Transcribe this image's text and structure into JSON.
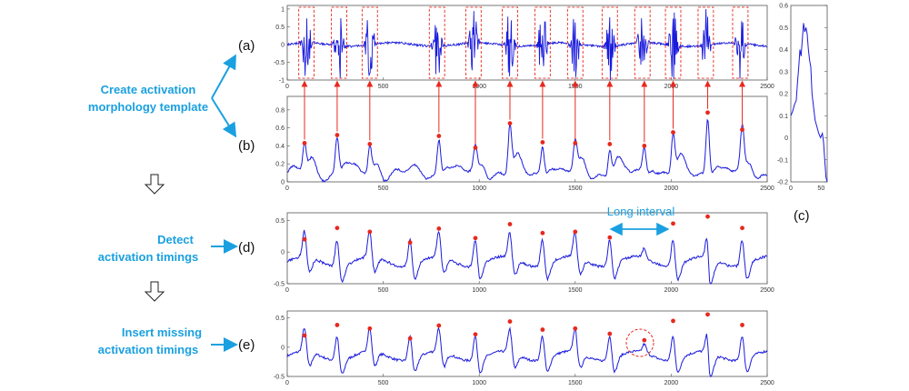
{
  "steps": {
    "template": [
      "Create activation",
      "morphology template"
    ],
    "detect": [
      "Detect",
      "activation timings"
    ],
    "insert": [
      "Insert missing",
      "activation timings"
    ]
  },
  "panel_labels": {
    "a": "(a)",
    "b": "(b)",
    "c": "(c)",
    "d": "(d)",
    "e": "(e)"
  },
  "annotation": "Long interval",
  "colors": {
    "signal": "#1a1adc",
    "marker": "#e8281e",
    "accent": "#1aa0e0",
    "box": "#e8281e"
  },
  "chart_data": [
    {
      "type": "line",
      "name": "panel-a",
      "x_ticks": [
        "0",
        "500",
        "1000",
        "1500",
        "2000",
        "2500"
      ],
      "y_ticks": [
        "1",
        "0.5",
        "0",
        "-0.5",
        "-1"
      ],
      "xlim": [
        0,
        2500
      ],
      "ylim": [
        -1,
        1.1
      ],
      "windows": [
        [
          60,
          140
        ],
        [
          230,
          310
        ],
        [
          390,
          470
        ],
        [
          740,
          820
        ],
        [
          930,
          1010
        ],
        [
          1120,
          1200
        ],
        [
          1290,
          1370
        ],
        [
          1460,
          1540
        ],
        [
          1640,
          1720
        ],
        [
          1810,
          1890
        ],
        [
          1970,
          2050
        ],
        [
          2140,
          2220
        ],
        [
          2320,
          2400
        ]
      ]
    },
    {
      "type": "line",
      "name": "panel-b",
      "x_ticks": [
        "0",
        "500",
        "1000",
        "1500",
        "2000",
        "2500"
      ],
      "y_ticks": [
        "0.8",
        "0.6",
        "0.4",
        "0.2",
        "0"
      ],
      "xlim": [
        0,
        2500
      ],
      "ylim": [
        0,
        0.95
      ],
      "peaks_x": [
        90,
        260,
        430,
        790,
        980,
        1160,
        1330,
        1500,
        1680,
        1860,
        2010,
        2190,
        2370
      ],
      "peaks_y": [
        0.43,
        0.52,
        0.42,
        0.51,
        0.38,
        0.65,
        0.44,
        0.43,
        0.42,
        0.4,
        0.55,
        0.77,
        0.58
      ]
    },
    {
      "type": "line",
      "name": "panel-c",
      "x_ticks": [
        "0",
        "50"
      ],
      "y_ticks": [
        "0.6",
        "0.5",
        "0.4",
        "0.3",
        "0.2",
        "0.1",
        "0",
        "-0.1",
        "-0.2"
      ],
      "xlim": [
        0,
        60
      ],
      "ylim": [
        -0.2,
        0.6
      ]
    },
    {
      "type": "line",
      "name": "panel-d",
      "x_ticks": [
        "0",
        "500",
        "1000",
        "1500",
        "2000",
        "2500"
      ],
      "y_ticks": [
        "0.5",
        "0",
        "-0.5"
      ],
      "xlim": [
        0,
        2500
      ],
      "ylim": [
        -0.5,
        0.62
      ],
      "detections_x": [
        90,
        260,
        430,
        640,
        790,
        980,
        1160,
        1330,
        1500,
        1680,
        2010,
        2190,
        2370
      ],
      "detections_y": [
        0.2,
        0.38,
        0.32,
        0.15,
        0.37,
        0.22,
        0.44,
        0.3,
        0.32,
        0.23,
        0.45,
        0.56,
        0.38
      ]
    },
    {
      "type": "line",
      "name": "panel-e",
      "x_ticks": [
        "0",
        "500",
        "1000",
        "1500",
        "2000",
        "2500"
      ],
      "y_ticks": [
        "0.5",
        "0",
        "-0.5"
      ],
      "xlim": [
        0,
        2500
      ],
      "ylim": [
        -0.5,
        0.62
      ],
      "detections_x": [
        90,
        260,
        430,
        640,
        790,
        980,
        1160,
        1330,
        1500,
        1680,
        1860,
        2010,
        2190,
        2370
      ],
      "detections_y": [
        0.2,
        0.38,
        0.32,
        0.15,
        0.37,
        0.22,
        0.44,
        0.3,
        0.32,
        0.23,
        0.12,
        0.45,
        0.56,
        0.38
      ]
    }
  ]
}
